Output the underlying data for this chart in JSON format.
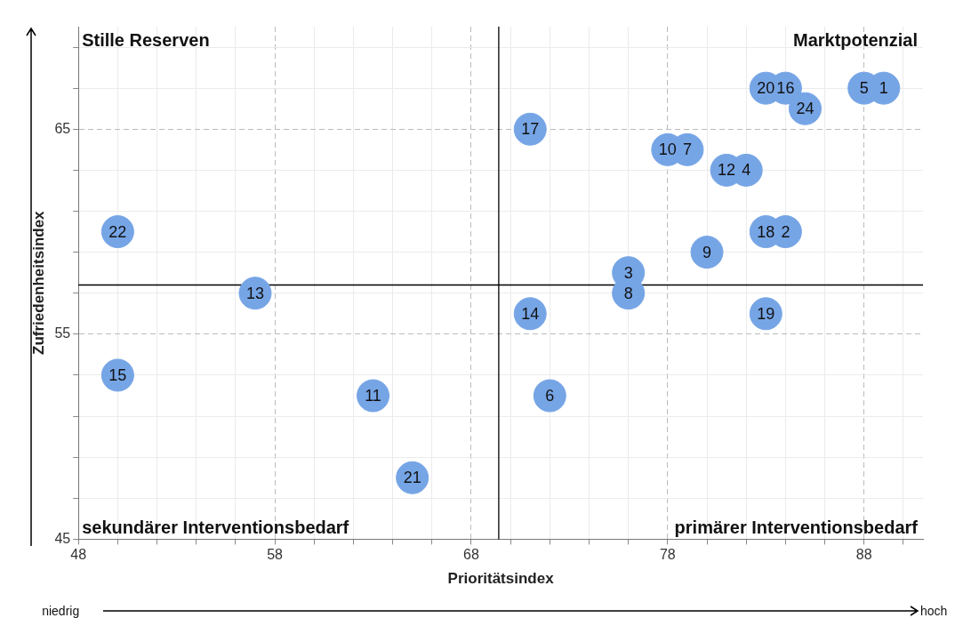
{
  "chart_data": {
    "type": "scatter",
    "xlabel": "Prioritätsindex",
    "ylabel": "Zufriedenheitsindex",
    "x": [
      88,
      89,
      83,
      84,
      85,
      71,
      78,
      79,
      81,
      82,
      50,
      83,
      84,
      80,
      76,
      76,
      57,
      71,
      83,
      50,
      63,
      72,
      65
    ],
    "series": [
      {
        "color": "#76a5e6",
        "values": [
          67,
          67,
          67,
          67,
          66,
          65,
          64,
          64,
          63,
          63,
          60,
          60,
          60,
          59,
          58,
          57,
          57,
          56,
          56,
          53,
          52,
          52,
          48
        ]
      }
    ],
    "marker": "circle",
    "grid": true,
    "legend": false,
    "xlim": [
      48,
      91
    ],
    "xticks": [
      48,
      {
        "value": 50,
        "label": null
      },
      {
        "value": 52,
        "label": null
      },
      {
        "value": 54,
        "label": null
      },
      {
        "value": 56,
        "label": null
      },
      58,
      {
        "value": 60,
        "label": null
      },
      {
        "value": 62,
        "label": null
      },
      {
        "value": 64,
        "label": null
      },
      {
        "value": 66,
        "label": null
      },
      68,
      {
        "value": 70,
        "label": null
      },
      {
        "value": 72,
        "label": null
      },
      {
        "value": 74,
        "label": null
      },
      {
        "value": 76,
        "label": null
      },
      78,
      {
        "value": 80,
        "label": null
      },
      {
        "value": 82,
        "label": null
      },
      {
        "value": 84,
        "label": null
      },
      {
        "value": 86,
        "label": null
      },
      88,
      {
        "value": 90,
        "label": null
      }
    ],
    "ylim": [
      45,
      70
    ],
    "yticks": [
      45,
      {
        "value": 47,
        "label": null
      },
      {
        "value": 49,
        "label": null
      },
      {
        "value": 51,
        "label": null
      },
      {
        "value": 53,
        "label": null
      },
      55,
      {
        "value": 57,
        "label": null
      },
      {
        "value": 59,
        "label": null
      },
      {
        "value": 61,
        "label": null
      },
      {
        "value": 63,
        "label": null
      },
      65,
      {
        "value": 67,
        "label": null
      },
      {
        "value": 69,
        "label": null
      }
    ],
    "ref_lines": [
      {
        "axis": "x",
        "value": 69.4,
        "color": "#000000"
      },
      {
        "axis": "y",
        "value": 57.4,
        "color": "#000000"
      }
    ],
    "annotations": [
      "Stille Reserven",
      "Marktpotenzial",
      "sekundärer Interventionsbedarf",
      "primärer Interventionsbedarf",
      "niedrig",
      "hoch",
      {
        "text": "5",
        "x": 88,
        "y": 67
      },
      {
        "text": "1",
        "x": 89,
        "y": 67
      },
      {
        "text": "20",
        "x": 83,
        "y": 67
      },
      {
        "text": "16",
        "x": 84,
        "y": 67
      },
      {
        "text": "24",
        "x": 85,
        "y": 66
      },
      {
        "text": "17",
        "x": 71,
        "y": 65
      },
      {
        "text": "10",
        "x": 78,
        "y": 64
      },
      {
        "text": "7",
        "x": 79,
        "y": 64
      },
      {
        "text": "12",
        "x": 81,
        "y": 63
      },
      {
        "text": "4",
        "x": 82,
        "y": 63
      },
      {
        "text": "22",
        "x": 50,
        "y": 60
      },
      {
        "text": "18",
        "x": 83,
        "y": 60
      },
      {
        "text": "2",
        "x": 84,
        "y": 60
      },
      {
        "text": "9",
        "x": 80,
        "y": 59
      },
      {
        "text": "3",
        "x": 76,
        "y": 58
      },
      {
        "text": "8",
        "x": 76,
        "y": 57
      },
      {
        "text": "13",
        "x": 57,
        "y": 57
      },
      {
        "text": "14",
        "x": 71,
        "y": 56
      },
      {
        "text": "19",
        "x": 83,
        "y": 56
      },
      {
        "text": "15",
        "x": 50,
        "y": 53
      },
      {
        "text": "11",
        "x": 63,
        "y": 52
      },
      {
        "text": "6",
        "x": 72,
        "y": 52
      },
      {
        "text": "21",
        "x": 65,
        "y": 48
      }
    ]
  }
}
